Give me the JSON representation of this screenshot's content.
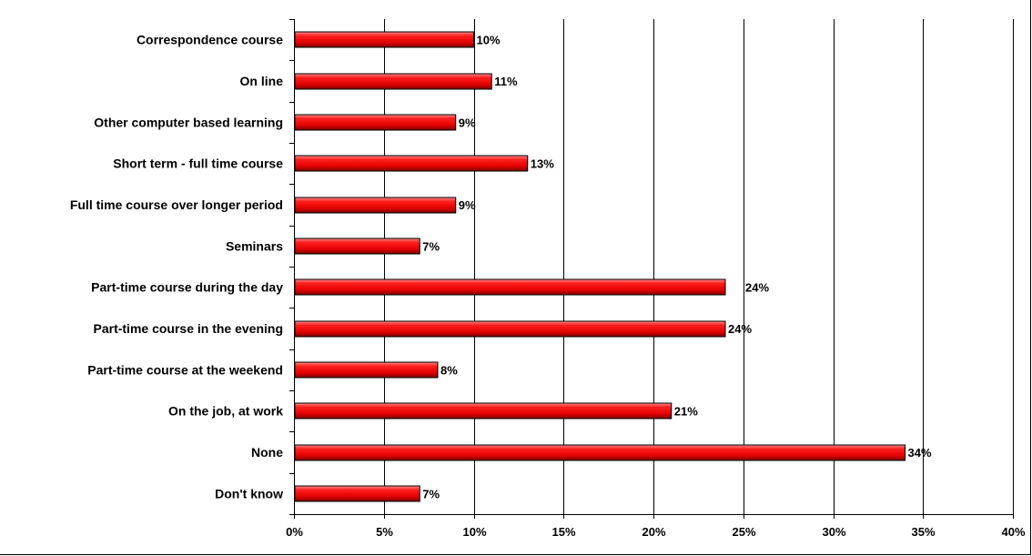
{
  "chart_data": {
    "type": "bar",
    "orientation": "horizontal",
    "title": "",
    "xlabel": "",
    "ylabel": "",
    "categories": [
      "Correspondence course",
      "On line",
      "Other computer based learning",
      "Short term - full time course",
      "Full time course over longer period",
      "Seminars",
      "Part-time course during the day",
      "Part-time course in the evening",
      "Part-time course at the weekend",
      "On the job, at work",
      "None",
      "Don't know"
    ],
    "values": [
      10,
      11,
      9,
      13,
      9,
      7,
      24,
      24,
      8,
      21,
      34,
      7
    ],
    "value_labels": [
      "10%",
      "11%",
      "9%",
      "13%",
      "9%",
      "7%",
      "24%",
      "24%",
      "8%",
      "21%",
      "34%",
      "7%"
    ],
    "xlim": [
      0,
      40
    ],
    "xticks": [
      0,
      5,
      10,
      15,
      20,
      25,
      30,
      35,
      40
    ],
    "xtick_labels": [
      "0%",
      "5%",
      "10%",
      "15%",
      "20%",
      "25%",
      "30%",
      "35%",
      "40%"
    ],
    "grid": "vertical",
    "legend": "none",
    "colors": {
      "bar": "#ee0000",
      "bar_dark": "#8a0000",
      "bar_light": "#ff7a7a",
      "grid": "#000000",
      "axis": "#000000",
      "background": "#ffffff"
    }
  }
}
